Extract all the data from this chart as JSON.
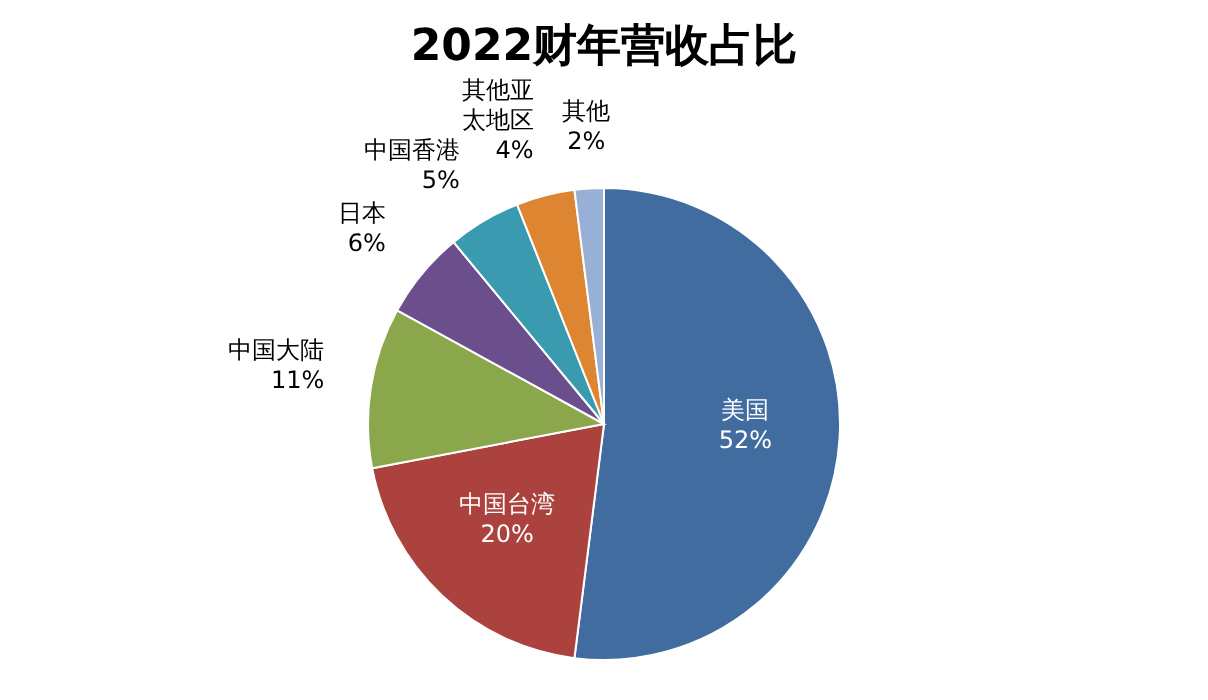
{
  "chart_data": {
    "type": "pie",
    "title": "2022财年营收占比",
    "categories": [
      "美国",
      "中国台湾",
      "中国大陆",
      "日本",
      "中国香港",
      "其他亚太地区",
      "其他"
    ],
    "values": [
      52,
      20,
      11,
      6,
      5,
      4,
      2
    ],
    "value_labels": [
      "52%",
      "20%",
      "11%",
      "6%",
      "5%",
      "4%",
      "2%"
    ],
    "colors": [
      "#416ca0",
      "#ab423e",
      "#8aa84b",
      "#6b4f8c",
      "#3a9bb0",
      "#dd8530",
      "#98afd6"
    ]
  }
}
